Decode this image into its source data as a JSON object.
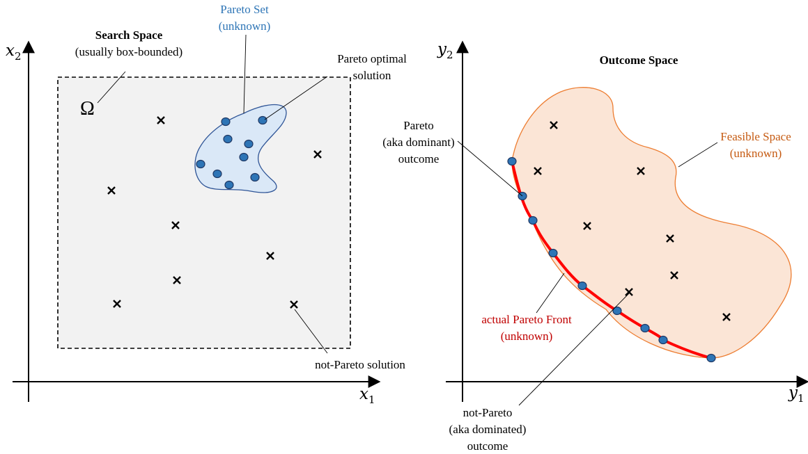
{
  "left": {
    "y_axis": {
      "symbol": "x",
      "subscript": "2"
    },
    "x_axis": {
      "symbol": "x",
      "subscript": "1"
    },
    "search_space_title": "Search Space",
    "search_space_note": "(usually box-bounded)",
    "omega": "Ω",
    "pareto_set_line1": "Pareto Set",
    "pareto_set_line2": "(unknown)",
    "pareto_optimal_line1": "Pareto optimal",
    "pareto_optimal_line2": "solution",
    "not_pareto_solution": "not-Pareto solution"
  },
  "right": {
    "y_axis": {
      "symbol": "y",
      "subscript": "2"
    },
    "x_axis": {
      "symbol": "y",
      "subscript": "1"
    },
    "outcome_space_title": "Outcome Space",
    "feasible_line1": "Feasible Space",
    "feasible_line2": "(unknown)",
    "pareto_outcome_line1": "Pareto",
    "pareto_outcome_line2": "(aka dominant)",
    "pareto_outcome_line3": "outcome",
    "front_line1": "actual Pareto Front",
    "front_line2": "(unknown)",
    "not_pareto_line1": "not-Pareto",
    "not_pareto_line2": "(aka dominated)",
    "not_pareto_line3": "outcome"
  },
  "colors": {
    "search_fill": "#f2f2f2",
    "pareto_set_fill": "#dae8f7",
    "pareto_set_stroke": "#2f5597",
    "dot_fill": "#2e75b6",
    "feasible_fill": "#fbe5d6",
    "feasible_stroke": "#ed7d31",
    "front_stroke": "#ff0000",
    "blue_text": "#2e75b6",
    "orange_text": "#c55a11",
    "red_text": "#c00000"
  }
}
